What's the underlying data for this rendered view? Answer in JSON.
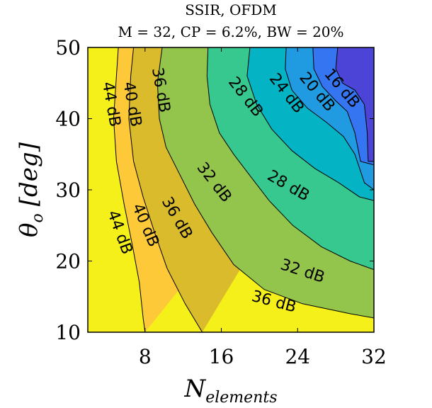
{
  "chart_data": {
    "type": "contour",
    "title_line1": "SSIR, OFDM",
    "title_line2": "M = 32, CP = 6.2%, BW = 20%",
    "xlabel": "N",
    "xlabel_sub": "elements",
    "ylabel": "θ",
    "ylabel_sub": "o",
    "ylabel_unit": "[deg]",
    "xlim": [
      2,
      32
    ],
    "ylim": [
      10,
      50
    ],
    "xticks": [
      "8",
      "16",
      "24",
      "32"
    ],
    "yticks": [
      "10",
      "20",
      "30",
      "40",
      "50"
    ],
    "level_unit": "dB",
    "levels": [
      16,
      20,
      24,
      28,
      32,
      36,
      40,
      44
    ],
    "contours": [
      {
        "level": 44,
        "label": "44 dB",
        "points": [
          [
            5.2,
            50
          ],
          [
            5.0,
            46
          ],
          [
            4.7,
            40
          ],
          [
            5.0,
            34
          ],
          [
            5.8,
            28
          ],
          [
            6.7,
            22
          ],
          [
            7.4,
            17
          ],
          [
            7.8,
            12
          ],
          [
            8.0,
            10
          ]
        ]
      },
      {
        "level": 40,
        "label": "40 dB",
        "points": [
          [
            6.8,
            50
          ],
          [
            6.5,
            46
          ],
          [
            6.3,
            40
          ],
          [
            6.8,
            34
          ],
          [
            7.8,
            29
          ],
          [
            9.0,
            24
          ],
          [
            10.3,
            19
          ],
          [
            12.2,
            14
          ],
          [
            14.0,
            10
          ]
        ]
      },
      {
        "level": 36,
        "label": "36 dB",
        "points": [
          [
            9.8,
            50
          ],
          [
            9.3,
            45
          ],
          [
            9.5,
            40
          ],
          [
            10.2,
            36
          ],
          [
            11.7,
            32
          ],
          [
            13.2,
            28
          ],
          [
            15.0,
            24
          ],
          [
            17.3,
            19.5
          ],
          [
            20.5,
            16
          ],
          [
            24.5,
            14
          ],
          [
            29.5,
            12.6
          ],
          [
            32,
            12
          ]
        ]
      },
      {
        "level": 32,
        "label": "32 dB",
        "points": [
          [
            14.6,
            50
          ],
          [
            14.5,
            46
          ],
          [
            14.8,
            42
          ],
          [
            15.8,
            38
          ],
          [
            17.3,
            35
          ],
          [
            19.0,
            32
          ],
          [
            21.0,
            28.5
          ],
          [
            23.5,
            25
          ],
          [
            26.5,
            22
          ],
          [
            29.5,
            20
          ],
          [
            32,
            18.8
          ]
        ]
      },
      {
        "level": 28,
        "label": "28 dB",
        "points": [
          [
            19.0,
            50
          ],
          [
            18.7,
            46
          ],
          [
            19.7,
            42
          ],
          [
            21.3,
            38.5
          ],
          [
            23.4,
            35.5
          ],
          [
            25.8,
            33
          ],
          [
            28.3,
            31
          ],
          [
            30.5,
            29
          ],
          [
            32,
            28.5
          ]
        ]
      },
      {
        "level": 24,
        "label": "24 dB",
        "points": [
          [
            22.8,
            50
          ],
          [
            22.7,
            47
          ],
          [
            23.4,
            44
          ],
          [
            25.0,
            41.5
          ],
          [
            27.0,
            39.5
          ],
          [
            28.8,
            37.5
          ],
          [
            30.0,
            35
          ],
          [
            31.0,
            31
          ],
          [
            32,
            30
          ]
        ]
      },
      {
        "level": 20,
        "label": "20 dB",
        "points": [
          [
            25.6,
            50
          ],
          [
            25.7,
            47
          ],
          [
            26.6,
            44.5
          ],
          [
            28.0,
            42.5
          ],
          [
            29.2,
            41
          ],
          [
            30.0,
            38
          ],
          [
            30.6,
            34
          ],
          [
            32,
            33.5
          ]
        ]
      },
      {
        "level": 16,
        "label": "16 dB",
        "points": [
          [
            28.2,
            50
          ],
          [
            28.0,
            47
          ],
          [
            28.7,
            45
          ],
          [
            30.0,
            44
          ],
          [
            31.0,
            42
          ],
          [
            31.3,
            38
          ],
          [
            31.4,
            34
          ],
          [
            32,
            34
          ]
        ]
      }
    ],
    "region_colors": [
      "#f6f01a",
      "#fec938",
      "#d9bb2b",
      "#93c44b",
      "#37c88f",
      "#04b4c5",
      "#209be2",
      "#3675f2",
      "#4c44d6"
    ],
    "contour_labels": [
      {
        "text": "44 dB",
        "x": 4.4,
        "y": 42,
        "angle": 80
      },
      {
        "text": "40 dB",
        "x": 6.6,
        "y": 42,
        "angle": 80
      },
      {
        "text": "36 dB",
        "x": 9.6,
        "y": 44,
        "angle": 80
      },
      {
        "text": "28 dB",
        "x": 18.5,
        "y": 43,
        "angle": 52
      },
      {
        "text": "24 dB",
        "x": 22.8,
        "y": 43.5,
        "angle": 52
      },
      {
        "text": "20 dB",
        "x": 26.0,
        "y": 43.7,
        "angle": 50
      },
      {
        "text": "16 dB",
        "x": 28.6,
        "y": 44.2,
        "angle": 50
      },
      {
        "text": "32 dB",
        "x": 15.2,
        "y": 31,
        "angle": 52
      },
      {
        "text": "28 dB",
        "x": 23.0,
        "y": 30.5,
        "angle": 30
      },
      {
        "text": "36 dB",
        "x": 11.3,
        "y": 26,
        "angle": 60
      },
      {
        "text": "40 dB",
        "x": 8.0,
        "y": 25,
        "angle": 67
      },
      {
        "text": "44 dB",
        "x": 5.3,
        "y": 24,
        "angle": 70
      },
      {
        "text": "32 dB",
        "x": 24.5,
        "y": 18.5,
        "angle": 18
      },
      {
        "text": "36 dB",
        "x": 21.5,
        "y": 14.2,
        "angle": 15
      }
    ]
  }
}
